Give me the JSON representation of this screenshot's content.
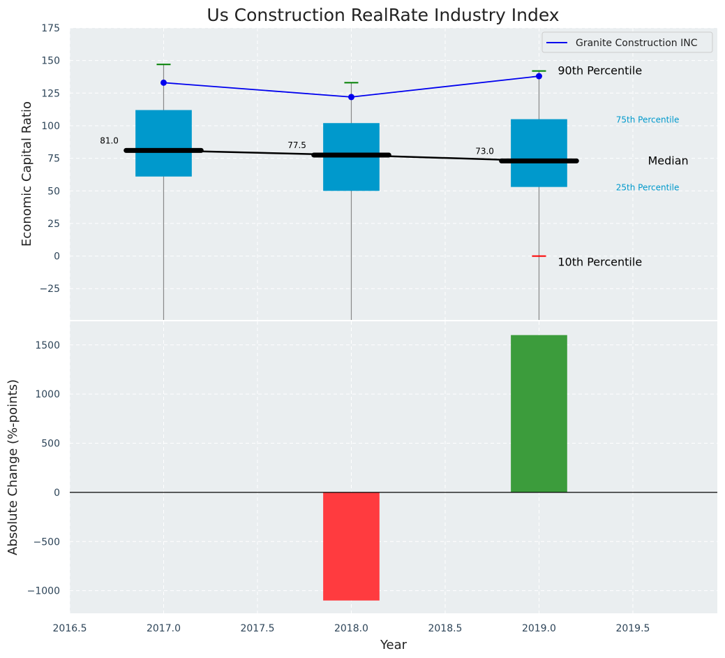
{
  "chart_data": [
    {
      "type": "box",
      "title": "Us Construction RealRate Industry Index",
      "ylabel": "Economic Capital Ratio",
      "ylim": [
        -49,
        175
      ],
      "yticks": [
        -25,
        0,
        25,
        50,
        75,
        100,
        125,
        150,
        175
      ],
      "xlim": [
        2016.5,
        2019.95
      ],
      "xticks": [
        2016.5,
        2017.0,
        2017.5,
        2018.0,
        2018.5,
        2019.0,
        2019.5
      ],
      "grid": true,
      "colors": {
        "box": "#0099cc",
        "median": "#000000",
        "company": "#0000ee",
        "p90": "#008000",
        "p10": "#ff0000",
        "whisker": "#888888",
        "background": "#eaeef0"
      },
      "boxes": [
        {
          "x": 2017.0,
          "p25": 61,
          "median": 81,
          "p75": 112,
          "p90": 147,
          "median_label": "81.0"
        },
        {
          "x": 2018.0,
          "p25": 50,
          "median": 77.5,
          "p75": 102,
          "p90": 133,
          "median_label": "77.5"
        },
        {
          "x": 2019.0,
          "p25": 53,
          "median": 73,
          "p75": 105,
          "p90": 142,
          "p10": 0,
          "median_label": "73.0"
        }
      ],
      "series": [
        {
          "name": "Granite Construction INC",
          "x": [
            2017.0,
            2018.0,
            2019.0
          ],
          "values": [
            133,
            122,
            138
          ]
        }
      ],
      "legend": "top-right",
      "annotations": {
        "p90": "90th Percentile",
        "p75": "75th Percentile",
        "median": "Median",
        "p25": "25th Percentile",
        "p10": "10th Percentile"
      }
    },
    {
      "type": "bar",
      "ylabel": "Absolute Change (%-points)",
      "xlabel": "Year",
      "ylim": [
        -1230,
        1740
      ],
      "yticks": [
        -1000,
        -500,
        0,
        500,
        1000,
        1500
      ],
      "xlim": [
        2016.5,
        2019.95
      ],
      "xticks": [
        2016.5,
        2017.0,
        2017.5,
        2018.0,
        2018.5,
        2019.0,
        2019.5
      ],
      "xtick_labels": [
        "2016.5",
        "2017.0",
        "2017.5",
        "2018.0",
        "2018.5",
        "2019.0",
        "2019.5"
      ],
      "x": [
        2018.0,
        2019.0
      ],
      "values": [
        -1100,
        1600
      ],
      "colors": {
        "negative": "#ff3b3f",
        "positive": "#3c9c3c"
      },
      "grid": true
    }
  ]
}
